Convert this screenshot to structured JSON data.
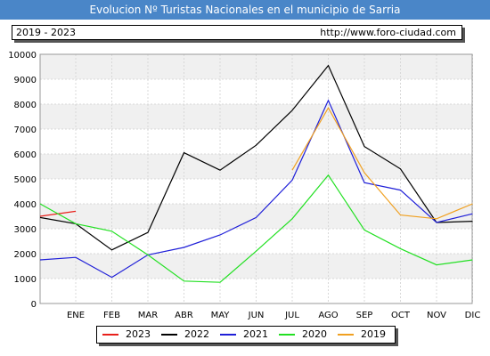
{
  "header": {
    "title": "Evolucion Nº Turistas Nacionales en el municipio de Sarria",
    "period": "2019 - 2023",
    "website": "http://www.foro-ciudad.com"
  },
  "chart_data": {
    "type": "line",
    "categories": [
      "ENE",
      "FEB",
      "MAR",
      "ABR",
      "MAY",
      "JUN",
      "JUL",
      "AGO",
      "SEP",
      "OCT",
      "NOV",
      "DIC"
    ],
    "ylim": [
      0,
      10000
    ],
    "yticks": [
      0,
      1000,
      2000,
      3000,
      4000,
      5000,
      6000,
      7000,
      8000,
      9000,
      10000
    ],
    "grid": true,
    "legend_position": "bottom",
    "series": [
      {
        "name": "2023",
        "color": "#e8201b",
        "values": [
          3700,
          null,
          null,
          null,
          null,
          null,
          null,
          null,
          null,
          null,
          null,
          null
        ]
      },
      {
        "name": "2022",
        "color": "#000000",
        "values": [
          3200,
          2150,
          2850,
          6050,
          5350,
          6350,
          7750,
          9550,
          6300,
          5400,
          3250,
          3300
        ]
      },
      {
        "name": "2021",
        "color": "#1f1fd8",
        "values": [
          1850,
          1050,
          1950,
          2250,
          2750,
          3450,
          4950,
          8150,
          4850,
          4550,
          3250,
          3600
        ]
      },
      {
        "name": "2020",
        "color": "#22e022",
        "values": [
          3200,
          2900,
          1950,
          900,
          850,
          2100,
          3400,
          5150,
          2950,
          2200,
          1550,
          1750
        ]
      },
      {
        "name": "2019",
        "color": "#f0a020",
        "values": [
          null,
          null,
          null,
          null,
          null,
          null,
          5350,
          7850,
          5250,
          3550,
          3400,
          4000
        ]
      }
    ],
    "lead_in": {
      "2023": 3500,
      "2022": 3450,
      "2021": 1750,
      "2020": 4000
    }
  }
}
